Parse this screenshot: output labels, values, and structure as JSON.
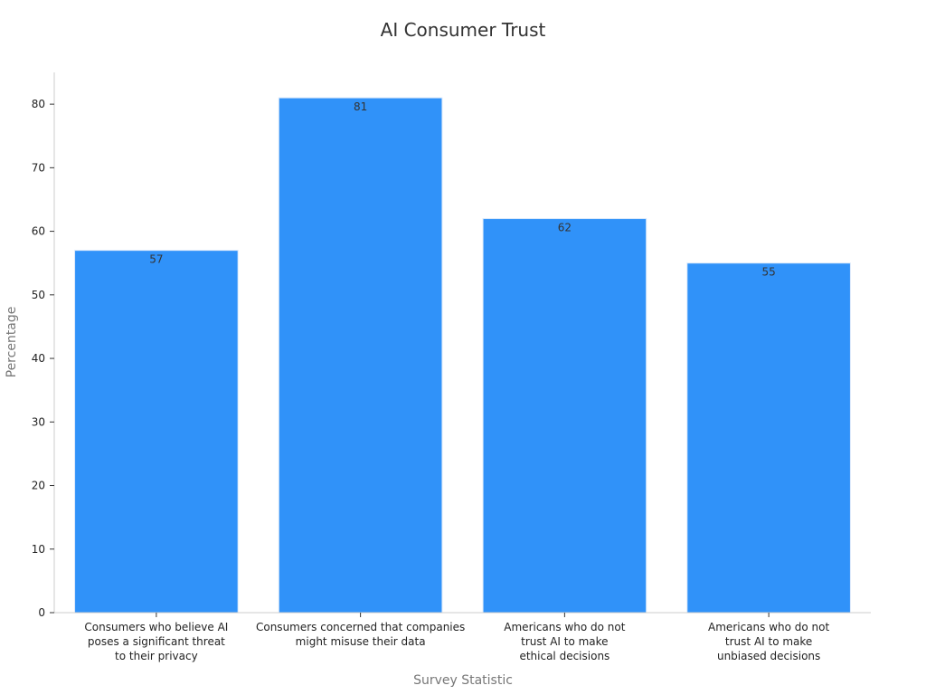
{
  "chart_data": {
    "type": "bar",
    "title": "AI Consumer Trust",
    "xlabel": "Survey Statistic",
    "ylabel": "Percentage",
    "categories": [
      [
        "Consumers who believe AI",
        "poses a significant threat",
        "to their privacy"
      ],
      [
        "Consumers concerned that companies",
        "might misuse their data"
      ],
      [
        "Americans who do not",
        "trust AI to make",
        "ethical decisions"
      ],
      [
        "Americans who do not",
        "trust AI to make",
        "unbiased decisions"
      ]
    ],
    "values": [
      57,
      81,
      62,
      55
    ],
    "yticks": [
      0,
      10,
      20,
      30,
      40,
      50,
      60,
      70,
      80
    ],
    "ylim": [
      0,
      85
    ],
    "grid": false,
    "legend": "none",
    "bar_color": "#3092f9",
    "bar_edge_color": "#dbe9fb"
  }
}
